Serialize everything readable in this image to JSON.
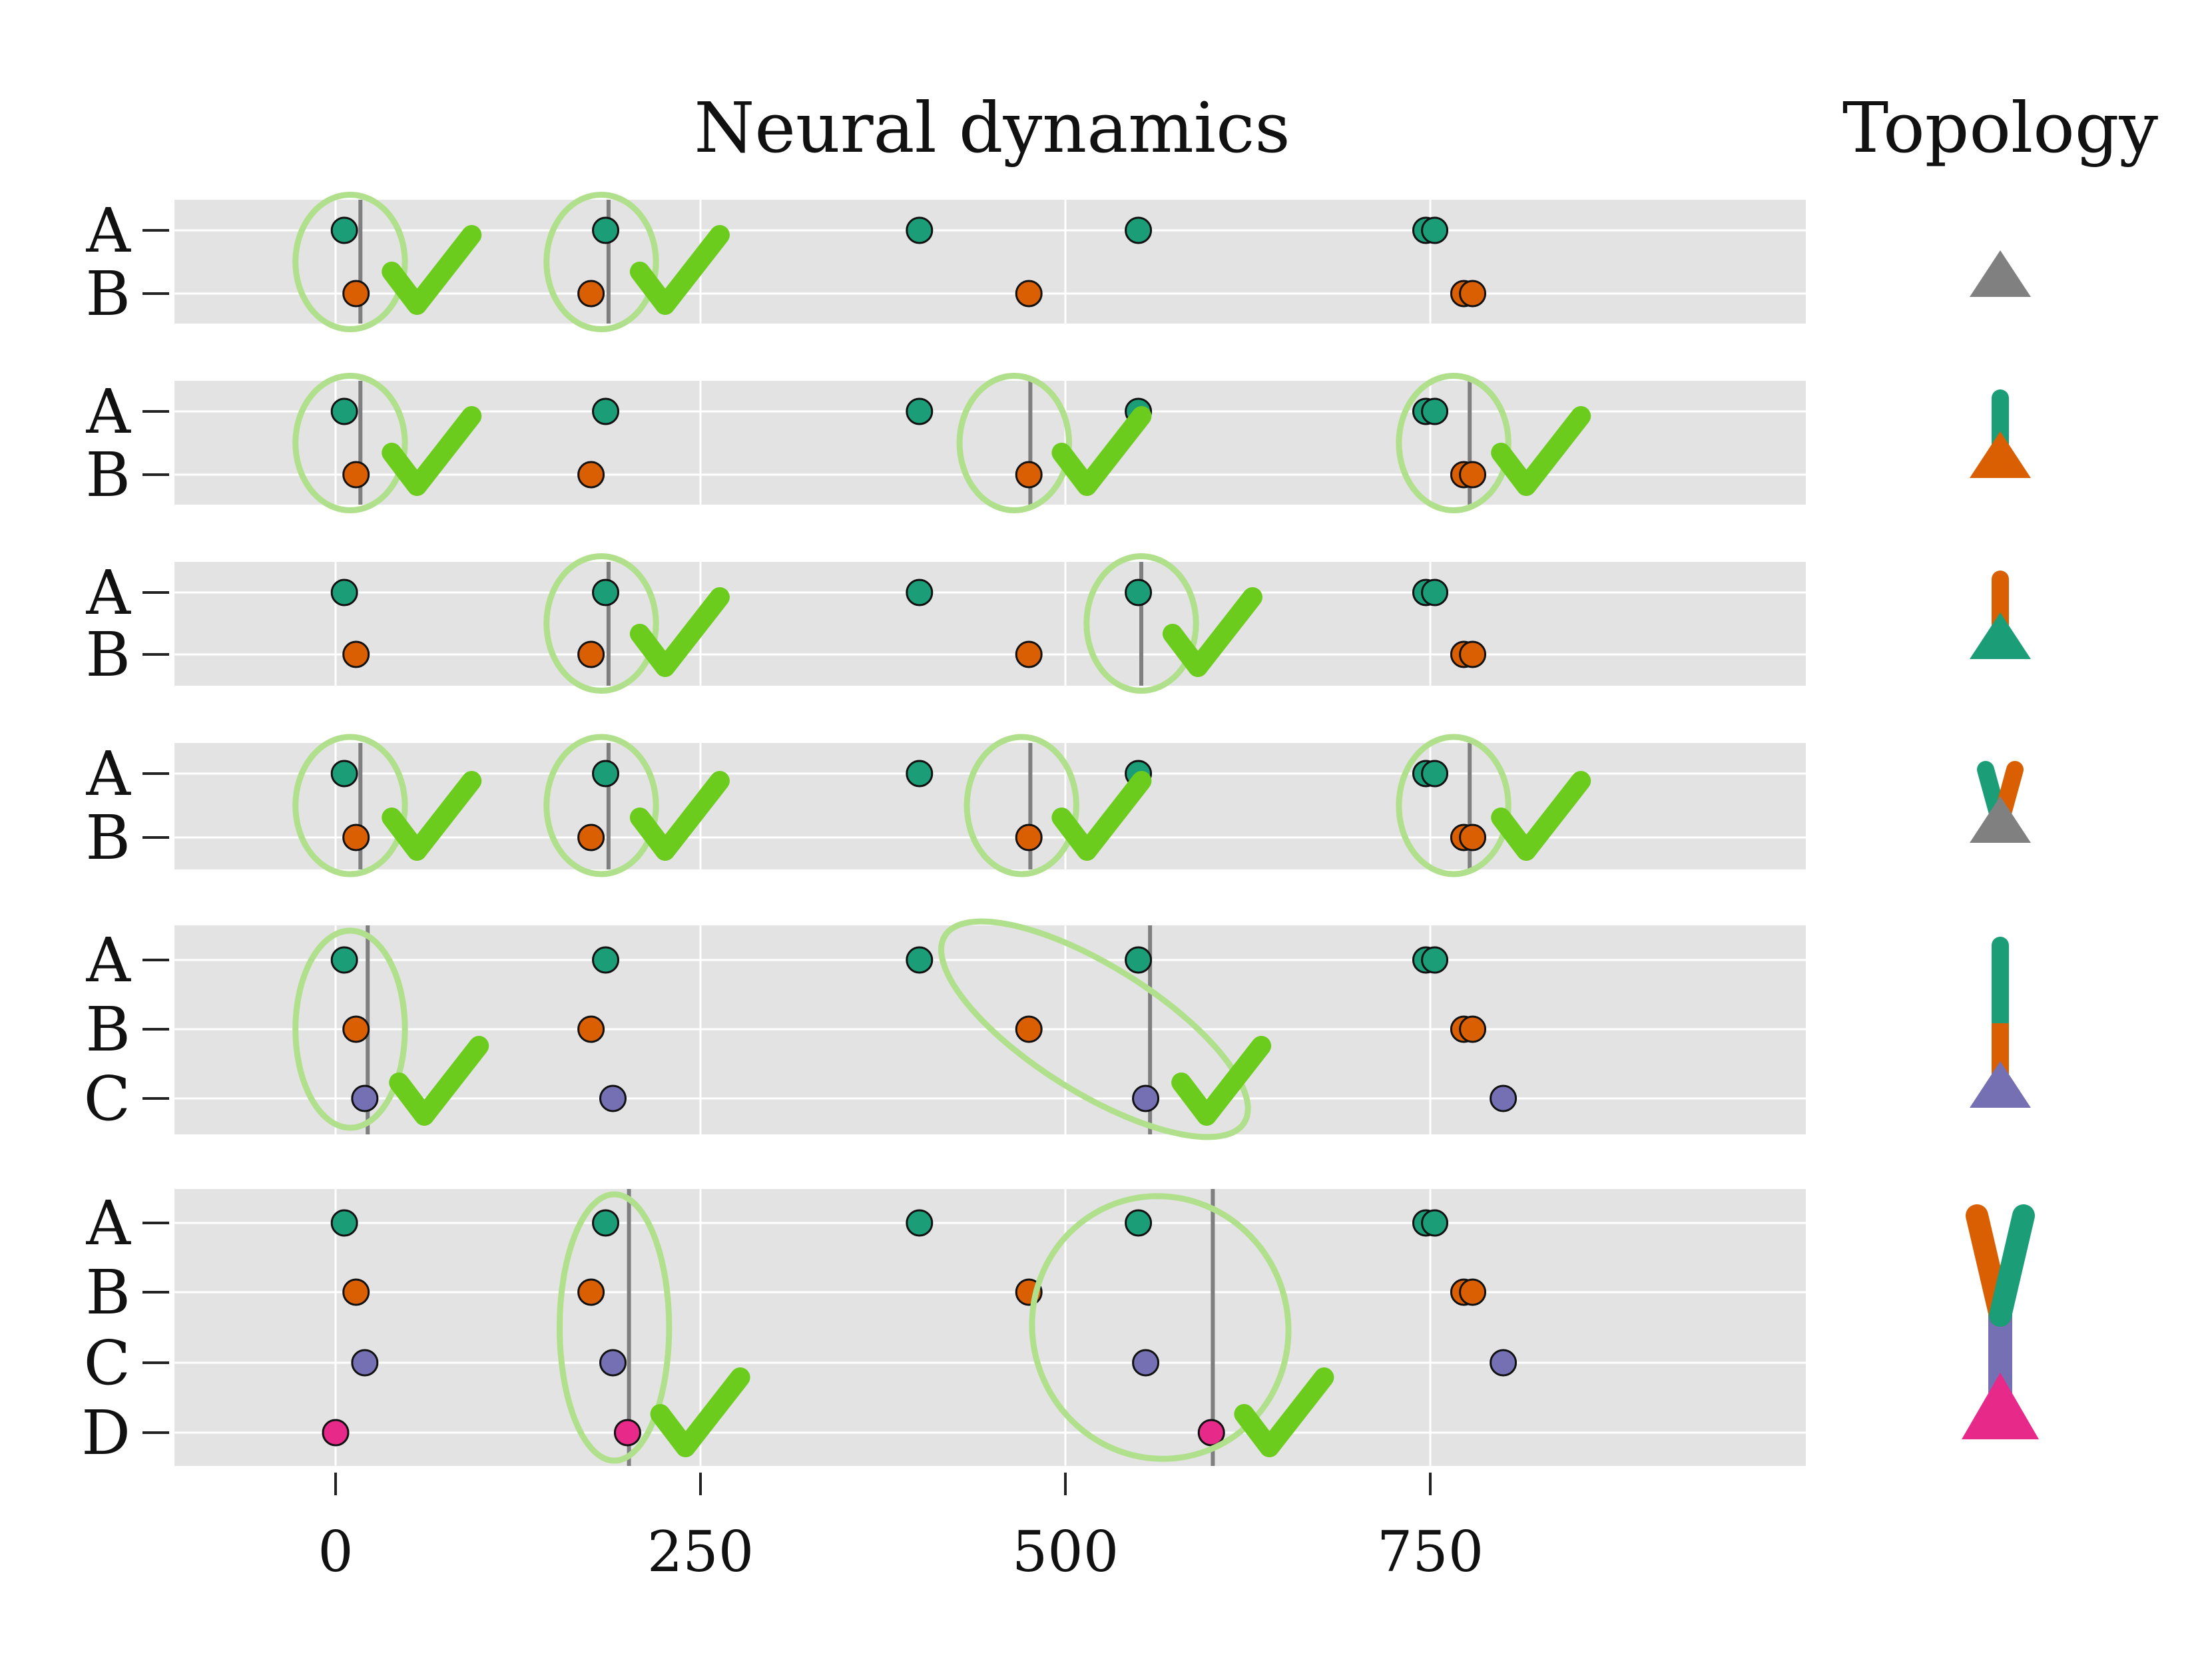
{
  "titles": {
    "main": "Neural dynamics",
    "side": "Topology"
  },
  "colors": {
    "A": "#1b9e77",
    "B": "#d95f02",
    "C": "#7570b3",
    "D": "#e7298a",
    "root_gray": "#808080",
    "panel_bg": "#e3e3e3",
    "grid": "#ffffff",
    "marker": "#7f7f7f",
    "ellipse": "#b0e08c",
    "check": "#6ccc1e"
  },
  "chart_data": {
    "type": "scatter",
    "x_ticks": [
      0,
      250,
      500,
      750
    ],
    "x_tick_labels": [
      "0",
      "250",
      "500",
      "750"
    ],
    "xlim": [
      -100,
      900
    ],
    "panels": [
      {
        "rows": [
          "A",
          "B"
        ],
        "spikes": {
          "A": [
            6,
            185,
            400,
            550,
            747,
            753
          ],
          "B": [
            14,
            175,
            475,
            773,
            779
          ]
        },
        "detections": [
          {
            "x": 17,
            "ellipse_center": [
              10,
              "A-B"
            ],
            "ellipse_width": 75
          },
          {
            "x": 187,
            "ellipse_center": [
              182,
              "A-B"
            ],
            "ellipse_width": 75
          }
        ],
        "topology": {
          "stems": [],
          "triangle": "root_gray"
        }
      },
      {
        "rows": [
          "A",
          "B"
        ],
        "spikes": {
          "A": [
            6,
            185,
            400,
            550,
            747,
            753
          ],
          "B": [
            14,
            175,
            475,
            773,
            779
          ]
        },
        "detections": [
          {
            "x": 17,
            "ellipse_center": [
              10,
              "A-B"
            ],
            "ellipse_width": 75
          },
          {
            "x": 476,
            "ellipse_center": [
              465,
              "A-B"
            ],
            "ellipse_width": 75
          },
          {
            "x": 777,
            "ellipse_center": [
              766,
              "A-B"
            ],
            "ellipse_width": 75
          }
        ],
        "topology": {
          "stems": [
            "A"
          ],
          "triangle": "B"
        }
      },
      {
        "rows": [
          "A",
          "B"
        ],
        "spikes": {
          "A": [
            6,
            185,
            400,
            550,
            747,
            753
          ],
          "B": [
            14,
            175,
            475,
            773,
            779
          ]
        },
        "detections": [
          {
            "x": 187,
            "ellipse_center": [
              182,
              "A-B"
            ],
            "ellipse_width": 75
          },
          {
            "x": 552,
            "ellipse_center": [
              552,
              "A-B"
            ],
            "ellipse_width": 75
          }
        ],
        "topology": {
          "stems": [
            "B"
          ],
          "triangle": "A"
        }
      },
      {
        "rows": [
          "A",
          "B"
        ],
        "spikes": {
          "A": [
            6,
            185,
            400,
            550,
            747,
            753
          ],
          "B": [
            14,
            175,
            475,
            773,
            779
          ]
        },
        "detections": [
          {
            "x": 17,
            "ellipse_center": [
              10,
              "A-B"
            ],
            "ellipse_width": 75
          },
          {
            "x": 187,
            "ellipse_center": [
              182,
              "A-B"
            ],
            "ellipse_width": 75
          },
          {
            "x": 476,
            "ellipse_center": [
              470,
              "A-B"
            ],
            "ellipse_width": 75
          },
          {
            "x": 777,
            "ellipse_center": [
              766,
              "A-B"
            ],
            "ellipse_width": 75
          }
        ],
        "topology": {
          "stems": [
            "A",
            "B"
          ],
          "triangle": "root_gray"
        }
      },
      {
        "rows": [
          "A",
          "B",
          "C"
        ],
        "spikes": {
          "A": [
            6,
            185,
            400,
            550,
            747,
            753
          ],
          "B": [
            14,
            175,
            475,
            773,
            779
          ],
          "C": [
            20,
            190,
            555,
            800
          ]
        },
        "detections": [
          {
            "x": 22,
            "ellipse_center": [
              10,
              "B"
            ],
            "ellipse_width": 75
          },
          {
            "x": 558,
            "ellipse_center": [
              520,
              "B"
            ],
            "ellipse_width": 220,
            "rotation": 32
          }
        ],
        "topology": {
          "stems": [
            "A",
            "B"
          ],
          "triangle": "C"
        }
      },
      {
        "rows": [
          "A",
          "B",
          "C",
          "D"
        ],
        "spikes": {
          "A": [
            6,
            185,
            400,
            550,
            747,
            753
          ],
          "B": [
            14,
            175,
            475,
            773,
            779
          ],
          "C": [
            20,
            190,
            555,
            800
          ],
          "D": [
            0,
            200,
            600
          ]
        },
        "detections": [
          {
            "x": 201,
            "ellipse_center": [
              191,
              "B-C"
            ],
            "ellipse_width": 75
          },
          {
            "x": 601,
            "ellipse_center": [
              565,
              "B-C"
            ],
            "ellipse_width": 175,
            "rotation": -20
          }
        ],
        "topology": {
          "stems": [
            "B",
            "A"
          ],
          "trunk": "C",
          "triangle": "D"
        }
      }
    ]
  }
}
